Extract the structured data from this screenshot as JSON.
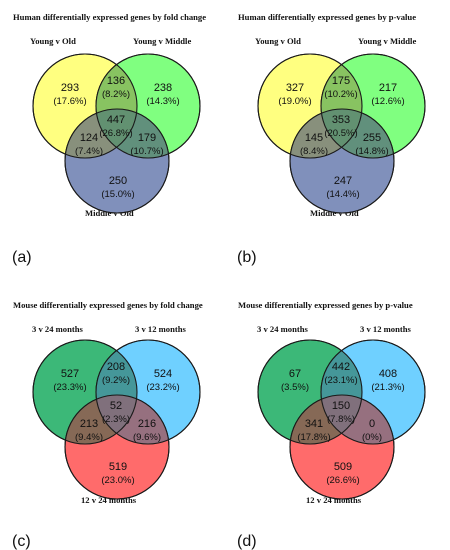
{
  "panels": [
    {
      "id": "a",
      "label": "(a)",
      "title": "Human differentially expressed genes by fold change",
      "sets": [
        "Young v Old",
        "Young v Middle",
        "Middle v Old"
      ],
      "colors": [
        "#ffff80",
        "#80ff80",
        "#8090bb"
      ],
      "regions": {
        "only_1": {
          "count": "293",
          "pct": "(17.6%)"
        },
        "only_2": {
          "count": "238",
          "pct": "(14.3%)"
        },
        "only_3": {
          "count": "250",
          "pct": "(15.0%)"
        },
        "pair_12": {
          "count": "136",
          "pct": "(8.2%)"
        },
        "pair_13": {
          "count": "124",
          "pct": "(7.4%)"
        },
        "pair_23": {
          "count": "179",
          "pct": "(10.7%)"
        },
        "all": {
          "count": "447",
          "pct": "(26.8%)"
        }
      }
    },
    {
      "id": "b",
      "label": "(b)",
      "title": "Human differentially expressed genes by p-value",
      "sets": [
        "Young v Old",
        "Young v Middle",
        "Middle v Old"
      ],
      "colors": [
        "#ffff80",
        "#80ff80",
        "#8090bb"
      ],
      "regions": {
        "only_1": {
          "count": "327",
          "pct": "(19.0%)"
        },
        "only_2": {
          "count": "217",
          "pct": "(12.6%)"
        },
        "only_3": {
          "count": "247",
          "pct": "(14.4%)"
        },
        "pair_12": {
          "count": "175",
          "pct": "(10.2%)"
        },
        "pair_13": {
          "count": "145",
          "pct": "(8.4%)"
        },
        "pair_23": {
          "count": "255",
          "pct": "(14.8%)"
        },
        "all": {
          "count": "353",
          "pct": "(20.5%)"
        }
      }
    },
    {
      "id": "c",
      "label": "(c)",
      "title": "Mouse differentially expressed genes by fold change",
      "sets": [
        "3 v 24 months",
        "3 v 12 months",
        "12 v 24 months"
      ],
      "colors": [
        "#3cb878",
        "#6fd0ff",
        "#ff6b6b"
      ],
      "regions": {
        "only_1": {
          "count": "527",
          "pct": "(23.3%)"
        },
        "only_2": {
          "count": "524",
          "pct": "(23.2%)"
        },
        "only_3": {
          "count": "519",
          "pct": "(23.0%)"
        },
        "pair_12": {
          "count": "208",
          "pct": "(9.2%)"
        },
        "pair_13": {
          "count": "213",
          "pct": "(9.4%)"
        },
        "pair_23": {
          "count": "216",
          "pct": "(9.6%)"
        },
        "all": {
          "count": "52",
          "pct": "(2.3%)"
        }
      }
    },
    {
      "id": "d",
      "label": "(d)",
      "title": "Mouse differentially expressed genes by p-value",
      "sets": [
        "3 v 24 months",
        "3 v 12 months",
        "12 v 24 months"
      ],
      "colors": [
        "#3cb878",
        "#6fd0ff",
        "#ff6b6b"
      ],
      "regions": {
        "only_1": {
          "count": "67",
          "pct": "(3.5%)"
        },
        "only_2": {
          "count": "408",
          "pct": "(21.3%)"
        },
        "only_3": {
          "count": "509",
          "pct": "(26.6%)"
        },
        "pair_12": {
          "count": "442",
          "pct": "(23.1%)"
        },
        "pair_13": {
          "count": "341",
          "pct": "(17.8%)"
        },
        "pair_23": {
          "count": "0",
          "pct": "(0%)"
        },
        "all": {
          "count": "150",
          "pct": "(7.8%)"
        }
      }
    }
  ]
}
